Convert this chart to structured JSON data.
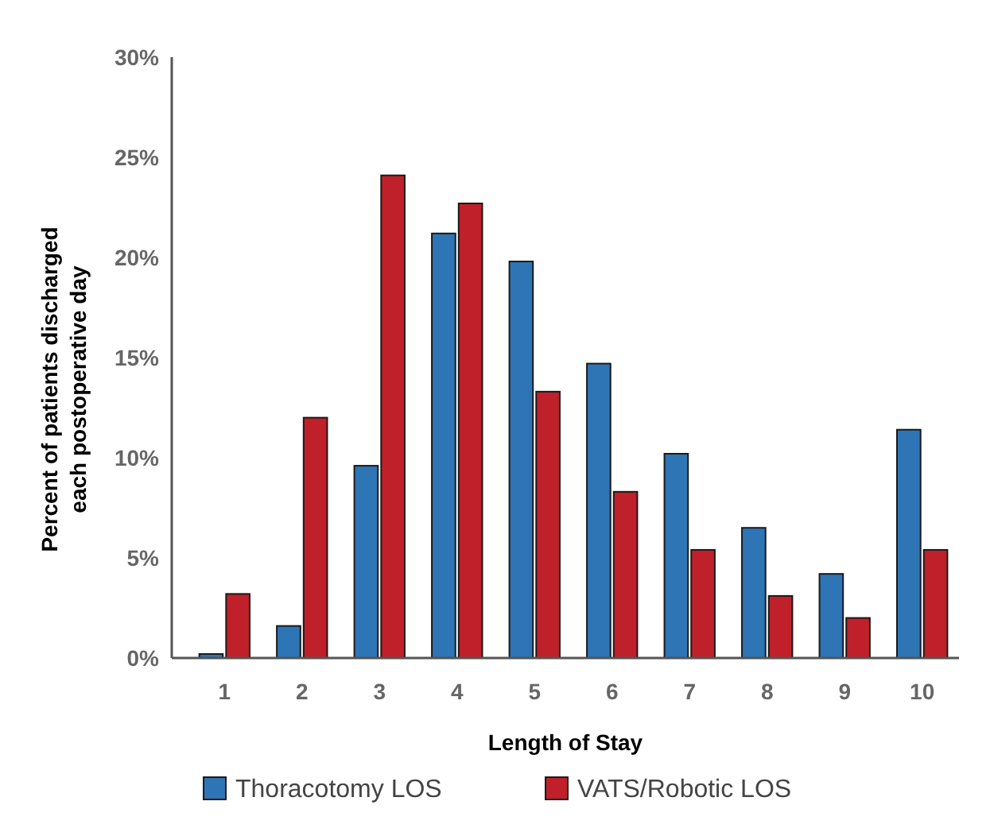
{
  "chart_data": {
    "type": "bar",
    "xlabel": "Length of Stay",
    "ylabel": "Percent of patients discharged each postoperative day",
    "categories": [
      "1",
      "2",
      "3",
      "4",
      "5",
      "6",
      "7",
      "8",
      "9",
      "10"
    ],
    "series": [
      {
        "name": "Thoracotomy LOS",
        "color": "#2e75b6",
        "values": [
          0.2,
          1.6,
          9.6,
          21.2,
          19.8,
          14.7,
          10.2,
          6.5,
          4.2,
          11.4
        ]
      },
      {
        "name": "VATS/Robotic LOS",
        "color": "#c0202a",
        "values": [
          3.2,
          12.0,
          24.1,
          22.7,
          13.3,
          8.3,
          5.4,
          3.1,
          2.0,
          5.4
        ]
      }
    ],
    "ylim": [
      0,
      30
    ],
    "yticks": [
      {
        "value": 0,
        "label": "0%"
      },
      {
        "value": 5,
        "label": "5%"
      },
      {
        "value": 10,
        "label": "10%"
      },
      {
        "value": 15,
        "label": "15%"
      },
      {
        "value": 20,
        "label": "20%"
      },
      {
        "value": 25,
        "label": "25%"
      },
      {
        "value": 30,
        "label": "30%"
      }
    ],
    "grid": false,
    "legend": "bottom"
  }
}
